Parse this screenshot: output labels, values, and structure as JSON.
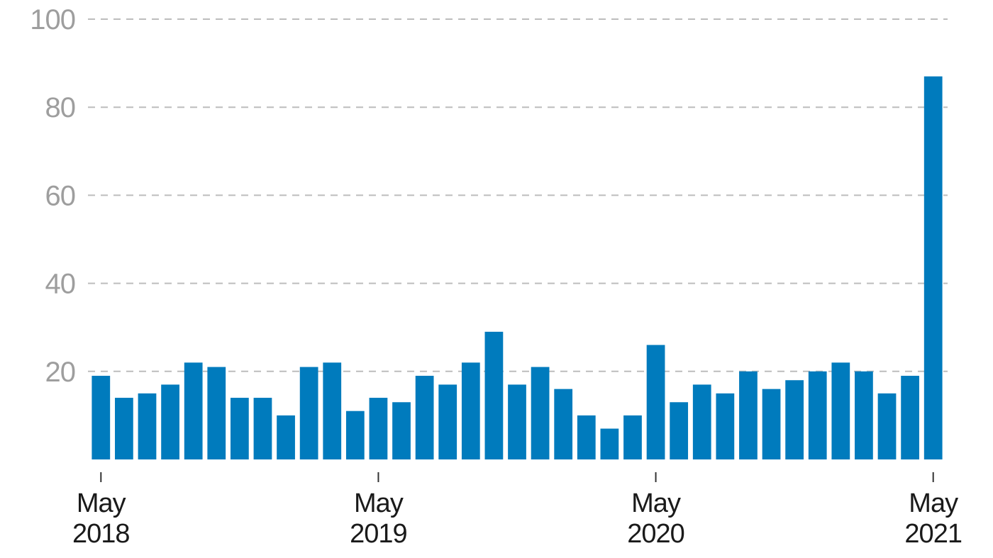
{
  "chart_data": {
    "type": "bar",
    "title": "",
    "xlabel": "",
    "ylabel": "",
    "ylim": [
      0,
      100
    ],
    "yticks": [
      20,
      40,
      60,
      80,
      100
    ],
    "grid": true,
    "bar_color": "#007bbd",
    "gridline_color": "#bdbdbd",
    "ytick_color": "#9e9e9e",
    "xtick_color": "#1a1a1a",
    "categories": [
      "May 2018",
      "Jun 2018",
      "Jul 2018",
      "Aug 2018",
      "Sep 2018",
      "Oct 2018",
      "Nov 2018",
      "Dec 2018",
      "Jan 2019",
      "Feb 2019",
      "Mar 2019",
      "Apr 2019",
      "May 2019",
      "Jun 2019",
      "Jul 2019",
      "Aug 2019",
      "Sep 2019",
      "Oct 2019",
      "Nov 2019",
      "Dec 2019",
      "Jan 2020",
      "Feb 2020",
      "Mar 2020",
      "Apr 2020",
      "May 2020",
      "Jun 2020",
      "Jul 2020",
      "Aug 2020",
      "Sep 2020",
      "Oct 2020",
      "Nov 2020",
      "Dec 2020",
      "Jan 2021",
      "Feb 2021",
      "Mar 2021",
      "Apr 2021",
      "May 2021"
    ],
    "values": [
      19,
      14,
      15,
      17,
      22,
      21,
      14,
      14,
      10,
      21,
      22,
      11,
      14,
      13,
      19,
      17,
      22,
      29,
      17,
      21,
      16,
      10,
      7,
      10,
      26,
      13,
      17,
      15,
      20,
      16,
      18,
      20,
      22,
      20,
      15,
      19,
      87
    ],
    "xticks": [
      {
        "index": 0,
        "line1": "May",
        "line2": "2018"
      },
      {
        "index": 12,
        "line1": "May",
        "line2": "2019"
      },
      {
        "index": 24,
        "line1": "May",
        "line2": "2020"
      },
      {
        "index": 36,
        "line1": "May",
        "line2": "2021"
      }
    ]
  }
}
